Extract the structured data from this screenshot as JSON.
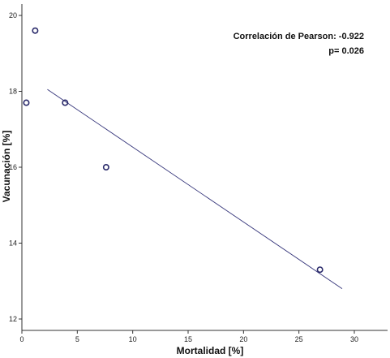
{
  "chart_data": {
    "type": "scatter",
    "xlabel": "Mortalidad [%]",
    "ylabel": "Vacunación [%]",
    "xlim": [
      0,
      33
    ],
    "ylim": [
      11.7,
      20.3
    ],
    "xticks": [
      0,
      5,
      10,
      15,
      20,
      25,
      30
    ],
    "yticks": [
      12,
      14,
      16,
      18,
      20
    ],
    "grid": false,
    "points": [
      {
        "x": 1.2,
        "y": 19.6
      },
      {
        "x": 0.4,
        "y": 17.7
      },
      {
        "x": 3.9,
        "y": 17.7
      },
      {
        "x": 7.6,
        "y": 16.0
      },
      {
        "x": 26.9,
        "y": 13.3
      }
    ],
    "fit_line": {
      "x": [
        2.3,
        28.9
      ],
      "y": [
        18.05,
        12.8
      ]
    },
    "annotations": [
      "Correlación de Pearson: -0.922",
      "p= 0.026"
    ],
    "colors": {
      "marker": "#2b2b6b",
      "fit_line": "#35357a",
      "axis": "#333333"
    }
  }
}
